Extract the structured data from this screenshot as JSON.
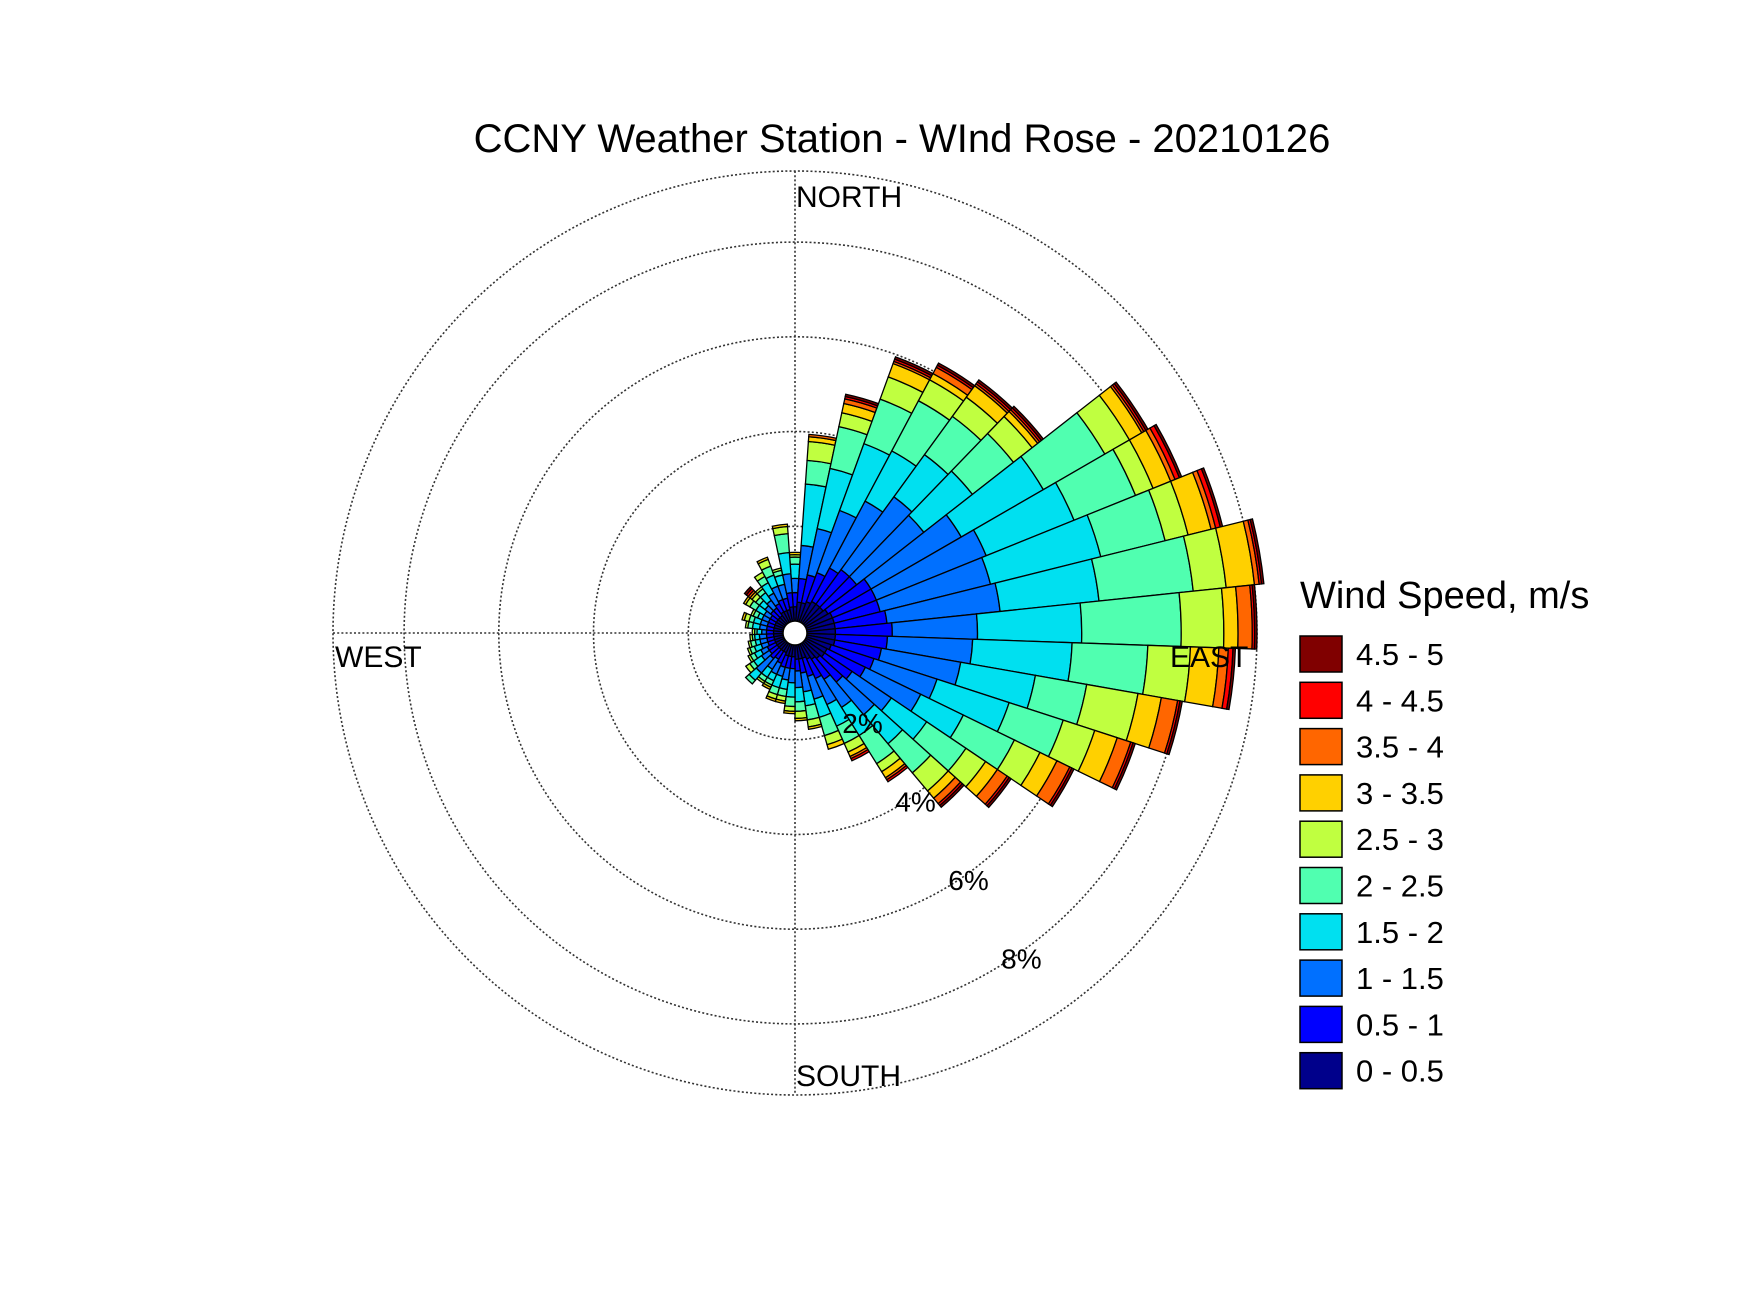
{
  "chart_data": {
    "type": "windrose",
    "title": "CCNY Weather Station - WInd Rose - 20210126",
    "directions": {
      "north": "NORTH",
      "south": "SOUTH",
      "east": "EAST",
      "west": "WEST"
    },
    "radial_axis": {
      "unit": "percent",
      "max": 9.5,
      "ticks": [
        2,
        4,
        6,
        8
      ],
      "tick_labels": [
        "2%",
        "4%",
        "6%",
        "8%"
      ]
    },
    "legend": {
      "title": "Wind Speed, m/s",
      "bins": [
        "0 - 0.5",
        "0.5 - 1",
        "1 - 1.5",
        "1.5 - 2",
        "2 - 2.5",
        "2.5 - 3",
        "3 - 3.5",
        "3.5 - 4",
        "4 - 4.5",
        "4.5 - 5"
      ],
      "colors": [
        "#00008b",
        "#0000ff",
        "#0070ff",
        "#00e0f0",
        "#50ffb0",
        "#c0ff40",
        "#ffd000",
        "#ff6600",
        "#ff0000",
        "#800000"
      ]
    },
    "sector_width_deg": 8,
    "sectors": [
      {
        "direction_deg": 0,
        "cumulative_pct": [
          0.3,
          0.6,
          0.9,
          1.2,
          1.35,
          1.4,
          1.45,
          1.45,
          1.45,
          1.45
        ]
      },
      {
        "direction_deg": 8,
        "cumulative_pct": [
          0.4,
          0.9,
          1.6,
          2.9,
          3.4,
          3.8,
          3.9,
          3.95,
          3.95,
          3.95
        ]
      },
      {
        "direction_deg": 16,
        "cumulative_pct": [
          0.4,
          1.0,
          2.0,
          3.3,
          4.2,
          4.5,
          4.7,
          4.8,
          4.85,
          4.9
        ]
      },
      {
        "direction_deg": 24,
        "cumulative_pct": [
          0.45,
          1.1,
          2.5,
          4.0,
          5.0,
          5.5,
          5.8,
          5.85,
          5.9,
          5.95
        ]
      },
      {
        "direction_deg": 32,
        "cumulative_pct": [
          0.5,
          1.3,
          2.9,
          4.1,
          5.3,
          5.8,
          5.95,
          6.1,
          6.15,
          6.2
        ]
      },
      {
        "direction_deg": 40,
        "cumulative_pct": [
          0.5,
          1.4,
          3.3,
          4.4,
          5.4,
          5.9,
          6.2,
          6.25,
          6.3,
          6.35
        ]
      },
      {
        "direction_deg": 48,
        "cumulative_pct": [
          0.5,
          1.4,
          3.2,
          4.5,
          5.6,
          6.1,
          6.25,
          6.3,
          6.35,
          6.4
        ]
      },
      {
        "direction_deg": 56,
        "cumulative_pct": [
          0.55,
          1.6,
          3.8,
          5.8,
          7.3,
          7.9,
          8.2,
          8.25,
          8.3,
          8.35
        ]
      },
      {
        "direction_deg": 64,
        "cumulative_pct": [
          0.6,
          1.6,
          4.1,
          6.1,
          7.5,
          7.9,
          8.3,
          8.4,
          8.5,
          8.55
        ]
      },
      {
        "direction_deg": 72,
        "cumulative_pct": [
          0.6,
          1.6,
          4.0,
          6.4,
          7.8,
          8.3,
          8.8,
          8.9,
          9.0,
          9.05
        ]
      },
      {
        "direction_deg": 80,
        "cumulative_pct": [
          0.6,
          1.7,
          4.1,
          6.2,
          8.2,
          8.9,
          9.5,
          9.6,
          9.65,
          9.7
        ]
      },
      {
        "direction_deg": 88,
        "cumulative_pct": [
          0.6,
          1.8,
          3.6,
          5.8,
          7.9,
          8.8,
          9.1,
          9.4,
          9.45,
          9.5
        ]
      },
      {
        "direction_deg": 96,
        "cumulative_pct": [
          0.6,
          1.7,
          3.5,
          5.6,
          7.2,
          8.1,
          8.7,
          8.9,
          9.0,
          9.05
        ]
      },
      {
        "direction_deg": 104,
        "cumulative_pct": [
          0.6,
          1.6,
          3.3,
          4.9,
          6.0,
          7.1,
          7.6,
          7.95,
          8.0,
          8.05
        ]
      },
      {
        "direction_deg": 112,
        "cumulative_pct": [
          0.55,
          1.5,
          2.9,
          4.5,
          5.7,
          6.4,
          6.9,
          7.2,
          7.25,
          7.3
        ]
      },
      {
        "direction_deg": 120,
        "cumulative_pct": [
          0.5,
          1.4,
          2.7,
          3.7,
          4.9,
          5.5,
          5.9,
          6.2,
          6.25,
          6.3
        ]
      },
      {
        "direction_deg": 128,
        "cumulative_pct": [
          0.5,
          1.2,
          2.2,
          3.1,
          4.1,
          4.6,
          4.9,
          5.15,
          5.2,
          5.25
        ]
      },
      {
        "direction_deg": 136,
        "cumulative_pct": [
          0.45,
          1.1,
          2.0,
          2.8,
          3.6,
          4.1,
          4.3,
          4.45,
          4.5,
          4.55
        ]
      },
      {
        "direction_deg": 144,
        "cumulative_pct": [
          0.4,
          0.9,
          1.6,
          2.3,
          3.0,
          3.2,
          3.35,
          3.4,
          3.45,
          3.45
        ]
      },
      {
        "direction_deg": 152,
        "cumulative_pct": [
          0.35,
          0.8,
          1.4,
          1.9,
          2.3,
          2.5,
          2.6,
          2.65,
          2.7,
          2.7
        ]
      },
      {
        "direction_deg": 160,
        "cumulative_pct": [
          0.3,
          0.7,
          1.2,
          1.6,
          2.0,
          2.2,
          2.3,
          2.3,
          2.3,
          2.3
        ]
      },
      {
        "direction_deg": 168,
        "cumulative_pct": [
          0.3,
          0.6,
          1.0,
          1.3,
          1.6,
          1.75,
          1.8,
          1.8,
          1.8,
          1.8
        ]
      },
      {
        "direction_deg": 176,
        "cumulative_pct": [
          0.3,
          0.55,
          0.9,
          1.2,
          1.4,
          1.55,
          1.6,
          1.6,
          1.6,
          1.6
        ]
      },
      {
        "direction_deg": 184,
        "cumulative_pct": [
          0.25,
          0.5,
          0.8,
          1.1,
          1.3,
          1.4,
          1.45,
          1.45,
          1.45,
          1.45
        ]
      },
      {
        "direction_deg": 192,
        "cumulative_pct": [
          0.25,
          0.5,
          0.75,
          0.95,
          1.1,
          1.2,
          1.25,
          1.25,
          1.25,
          1.25
        ]
      },
      {
        "direction_deg": 200,
        "cumulative_pct": [
          0.25,
          0.5,
          0.7,
          0.95,
          1.1,
          1.2,
          1.25,
          1.25,
          1.25,
          1.25
        ]
      },
      {
        "direction_deg": 208,
        "cumulative_pct": [
          0.2,
          0.45,
          0.7,
          0.85,
          0.95,
          1.0,
          1.05,
          1.05,
          1.05,
          1.05
        ]
      },
      {
        "direction_deg": 216,
        "cumulative_pct": [
          0.2,
          0.4,
          0.65,
          0.85,
          0.95,
          1.0,
          1.0,
          1.0,
          1.0,
          1.0
        ]
      },
      {
        "direction_deg": 224,
        "cumulative_pct": [
          0.2,
          0.45,
          0.85,
          1.05,
          1.15,
          1.15,
          1.15,
          1.15,
          1.15,
          1.15
        ]
      },
      {
        "direction_deg": 232,
        "cumulative_pct": [
          0.2,
          0.4,
          0.6,
          0.8,
          0.9,
          1.0,
          1.0,
          1.0,
          1.0,
          1.0
        ]
      },
      {
        "direction_deg": 240,
        "cumulative_pct": [
          0.2,
          0.4,
          0.55,
          0.7,
          0.8,
          0.85,
          0.85,
          0.85,
          0.85,
          0.85
        ]
      },
      {
        "direction_deg": 248,
        "cumulative_pct": [
          0.2,
          0.35,
          0.5,
          0.65,
          0.75,
          0.8,
          0.8,
          0.8,
          0.8,
          0.8
        ]
      },
      {
        "direction_deg": 256,
        "cumulative_pct": [
          0.2,
          0.35,
          0.5,
          0.6,
          0.7,
          0.75,
          0.75,
          0.75,
          0.75,
          0.75
        ]
      },
      {
        "direction_deg": 264,
        "cumulative_pct": [
          0.2,
          0.35,
          0.5,
          0.6,
          0.65,
          0.7,
          0.7,
          0.7,
          0.7,
          0.7
        ]
      },
      {
        "direction_deg": 272,
        "cumulative_pct": [
          0.2,
          0.35,
          0.45,
          0.55,
          0.6,
          0.65,
          0.65,
          0.65,
          0.65,
          0.65
        ]
      },
      {
        "direction_deg": 280,
        "cumulative_pct": [
          0.2,
          0.35,
          0.5,
          0.65,
          0.75,
          0.8,
          0.8,
          0.8,
          0.8,
          0.8
        ]
      },
      {
        "direction_deg": 288,
        "cumulative_pct": [
          0.2,
          0.35,
          0.5,
          0.65,
          0.75,
          0.85,
          0.9,
          0.9,
          0.9,
          0.9
        ]
      },
      {
        "direction_deg": 296,
        "cumulative_pct": [
          0.2,
          0.35,
          0.5,
          0.6,
          0.7,
          0.75,
          0.75,
          0.75,
          0.75,
          0.75
        ]
      },
      {
        "direction_deg": 304,
        "cumulative_pct": [
          0.2,
          0.35,
          0.5,
          0.7,
          0.85,
          0.95,
          1.0,
          1.0,
          1.0,
          1.0
        ]
      },
      {
        "direction_deg": 312,
        "cumulative_pct": [
          0.2,
          0.4,
          0.55,
          0.7,
          0.8,
          0.9,
          0.95,
          1.0,
          1.05,
          1.1
        ]
      },
      {
        "direction_deg": 320,
        "cumulative_pct": [
          0.2,
          0.4,
          0.6,
          0.8,
          0.9,
          0.95,
          0.95,
          0.95,
          0.95,
          0.95
        ]
      },
      {
        "direction_deg": 328,
        "cumulative_pct": [
          0.25,
          0.45,
          0.7,
          0.95,
          1.1,
          1.2,
          1.2,
          1.2,
          1.2,
          1.2
        ]
      },
      {
        "direction_deg": 336,
        "cumulative_pct": [
          0.25,
          0.5,
          0.8,
          1.05,
          1.25,
          1.4,
          1.45,
          1.45,
          1.45,
          1.45
        ]
      },
      {
        "direction_deg": 344,
        "cumulative_pct": [
          0.25,
          0.5,
          0.8,
          1.0,
          1.1,
          1.15,
          1.15,
          1.15,
          1.15,
          1.15
        ]
      },
      {
        "direction_deg": 352,
        "cumulative_pct": [
          0.3,
          0.6,
          1.0,
          1.45,
          1.85,
          2.0,
          2.05,
          2.05,
          2.05,
          2.05
        ]
      }
    ]
  }
}
